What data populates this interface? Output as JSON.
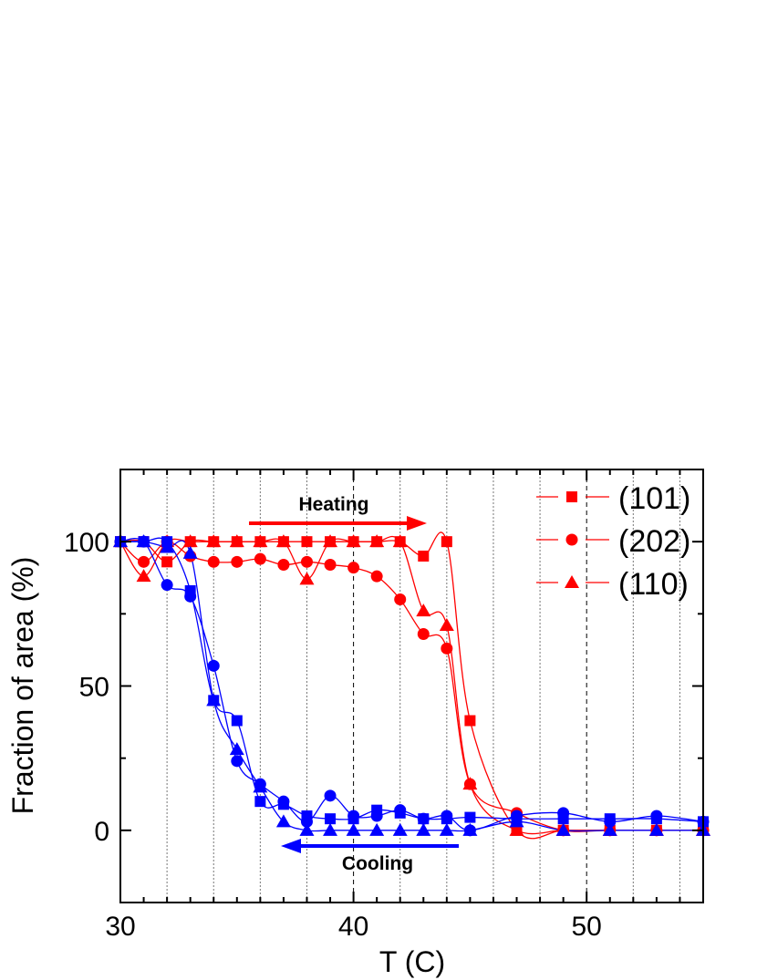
{
  "chart_data": {
    "type": "scatter",
    "xlabel": "T (C)",
    "ylabel": "Fraction of area (%)",
    "xlim": [
      30,
      55
    ],
    "ylim": [
      -25,
      125
    ],
    "xticks": [
      30,
      40,
      50
    ],
    "yticks": [
      0,
      50,
      100
    ],
    "grid": "vertical dotted, dashed at major ticks",
    "legend_placement": "top-right",
    "colors": {
      "heating": "#ff0000",
      "cooling": "#0000ff"
    },
    "annotations": {
      "heating": "Heating",
      "cooling": "Cooling"
    },
    "legend": [
      {
        "label": "(101)",
        "marker": "square"
      },
      {
        "label": "(202)",
        "marker": "circle"
      },
      {
        "label": "(110)",
        "marker": "triangle"
      }
    ],
    "x": [
      30,
      31,
      32,
      33,
      34,
      35,
      36,
      37,
      38,
      39,
      40,
      41,
      42,
      43,
      44,
      45,
      47,
      49,
      51,
      53,
      55
    ],
    "series": [
      {
        "name": "(101)",
        "group": "heating",
        "marker": "square",
        "values": [
          100,
          100,
          93,
          100,
          100,
          100,
          100,
          100,
          100,
          100,
          100,
          100,
          100,
          95,
          100,
          38,
          0,
          0,
          0,
          0,
          0
        ]
      },
      {
        "name": "(202)",
        "group": "heating",
        "marker": "circle",
        "values": [
          100,
          93,
          100,
          95,
          93,
          93,
          94,
          92,
          93,
          92,
          91,
          88,
          80,
          68,
          63,
          16,
          6,
          0,
          0,
          0,
          0
        ]
      },
      {
        "name": "(110)",
        "group": "heating",
        "marker": "triangle",
        "values": [
          100,
          88,
          100,
          100,
          100,
          100,
          100,
          100,
          87,
          100,
          100,
          100,
          100,
          76,
          71,
          16,
          0,
          0,
          0,
          0,
          0
        ]
      },
      {
        "name": "(101)",
        "group": "cooling",
        "marker": "square",
        "values": [
          100,
          100,
          100,
          83,
          45,
          38,
          10,
          9,
          5,
          4,
          4,
          7,
          6,
          4,
          4,
          4.5,
          4,
          4,
          4,
          4,
          3
        ]
      },
      {
        "name": "(202)",
        "group": "cooling",
        "marker": "circle",
        "values": [
          100,
          100,
          85,
          81,
          57,
          24,
          16,
          10,
          3,
          12,
          5,
          5,
          7,
          4,
          5,
          0,
          5,
          6,
          3,
          5,
          3
        ]
      },
      {
        "name": "(110)",
        "group": "cooling",
        "marker": "triangle",
        "values": [
          100,
          100,
          98,
          96,
          45,
          28,
          15,
          3,
          0,
          0,
          0,
          0,
          0,
          0,
          0,
          0,
          3,
          0,
          0,
          0,
          0
        ]
      }
    ]
  }
}
